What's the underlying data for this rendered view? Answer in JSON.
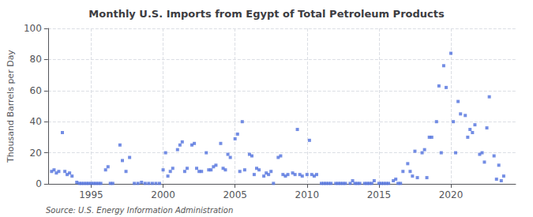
{
  "chart_data": {
    "type": "scatter",
    "title": "Monthly U.S. Imports from Egypt of Total Petroleum Products",
    "ylabel": "Thousand Barrels per Day",
    "annotations": [
      "Source: U.S. Energy Information Administration"
    ],
    "marker": "square",
    "grid": true,
    "xlim": [
      1992.0,
      2024.5
    ],
    "xticks": [
      1995,
      2000,
      2005,
      2010,
      2015,
      2020
    ],
    "ylim": [
      0,
      100
    ],
    "yticks": [
      0,
      20,
      40,
      60,
      80,
      100
    ],
    "x": [
      1992.25,
      1992.42,
      1992.58,
      1992.75,
      1993.0,
      1993.17,
      1993.33,
      1993.5,
      1993.67,
      1994.0,
      1994.17,
      1994.33,
      1994.5,
      1994.67,
      1994.83,
      1995.0,
      1995.17,
      1995.33,
      1995.5,
      1995.67,
      1996.0,
      1996.17,
      1996.33,
      1996.5,
      1997.0,
      1997.17,
      1997.42,
      1997.67,
      1998.0,
      1998.25,
      1998.5,
      1998.75,
      1999.0,
      1999.25,
      1999.5,
      1999.75,
      2000.0,
      2000.17,
      2000.33,
      2000.5,
      2000.67,
      2001.0,
      2001.17,
      2001.33,
      2001.5,
      2001.67,
      2002.0,
      2002.17,
      2002.33,
      2002.5,
      2002.67,
      2003.0,
      2003.17,
      2003.33,
      2003.5,
      2003.67,
      2004.0,
      2004.17,
      2004.33,
      2004.5,
      2004.67,
      2005.0,
      2005.17,
      2005.33,
      2005.5,
      2005.67,
      2006.0,
      2006.17,
      2006.33,
      2006.5,
      2006.67,
      2007.0,
      2007.17,
      2007.33,
      2007.5,
      2007.67,
      2008.0,
      2008.17,
      2008.33,
      2008.5,
      2008.67,
      2009.0,
      2009.17,
      2009.33,
      2009.5,
      2009.67,
      2010.0,
      2010.17,
      2010.33,
      2010.5,
      2010.67,
      2011.0,
      2011.17,
      2011.33,
      2011.5,
      2011.67,
      2012.0,
      2012.17,
      2012.33,
      2012.5,
      2012.67,
      2013.0,
      2013.17,
      2013.33,
      2013.5,
      2013.67,
      2014.0,
      2014.17,
      2014.33,
      2014.5,
      2014.67,
      2015.0,
      2015.17,
      2015.33,
      2015.5,
      2015.67,
      2016.0,
      2016.17,
      2016.33,
      2016.5,
      2016.67,
      2017.0,
      2017.17,
      2017.33,
      2017.5,
      2017.67,
      2018.0,
      2018.17,
      2018.33,
      2018.5,
      2018.67,
      2019.0,
      2019.17,
      2019.33,
      2019.5,
      2019.67,
      2020.0,
      2020.17,
      2020.33,
      2020.5,
      2020.67,
      2021.0,
      2021.17,
      2021.33,
      2021.5,
      2021.67,
      2022.0,
      2022.17,
      2022.33,
      2022.5,
      2022.67,
      2023.0,
      2023.17,
      2023.33,
      2023.5,
      2023.67
    ],
    "values": [
      8,
      9,
      7,
      8,
      33,
      8,
      6,
      7,
      5,
      1,
      0.3,
      0.3,
      0.3,
      0.3,
      0.3,
      0.3,
      0.3,
      0.3,
      0.3,
      0.3,
      9,
      11,
      0.3,
      0.3,
      25,
      15,
      8,
      17,
      0.3,
      0.3,
      1,
      0.3,
      0.3,
      0.3,
      0.3,
      0.3,
      9,
      20,
      5,
      8,
      10,
      22,
      25,
      27,
      8,
      10,
      25,
      26,
      10,
      8,
      8,
      20,
      9,
      9,
      11,
      12,
      26,
      10,
      9,
      19,
      17,
      29,
      32,
      8,
      40,
      9,
      19,
      18,
      6,
      10,
      9,
      5,
      7,
      6,
      8,
      0.3,
      17,
      18,
      6,
      5,
      6,
      7,
      6,
      35,
      6,
      5,
      6,
      28,
      6,
      5,
      6,
      0.3,
      0.3,
      0.3,
      0.3,
      0.3,
      0.3,
      0.3,
      0.3,
      0.3,
      0.3,
      0.3,
      2,
      0.3,
      0.3,
      0.3,
      0.3,
      0.3,
      0.3,
      0.3,
      2,
      0.3,
      0.3,
      0.3,
      0.3,
      0.3,
      2,
      3,
      0.3,
      0.3,
      8,
      13,
      8,
      5,
      21,
      4,
      20,
      22,
      4,
      30,
      30,
      40,
      63,
      20,
      76,
      62,
      84,
      40,
      20,
      53,
      45,
      44,
      30,
      35,
      33,
      38,
      19,
      20,
      14,
      36,
      56,
      18,
      3,
      12,
      2,
      5
    ]
  }
}
